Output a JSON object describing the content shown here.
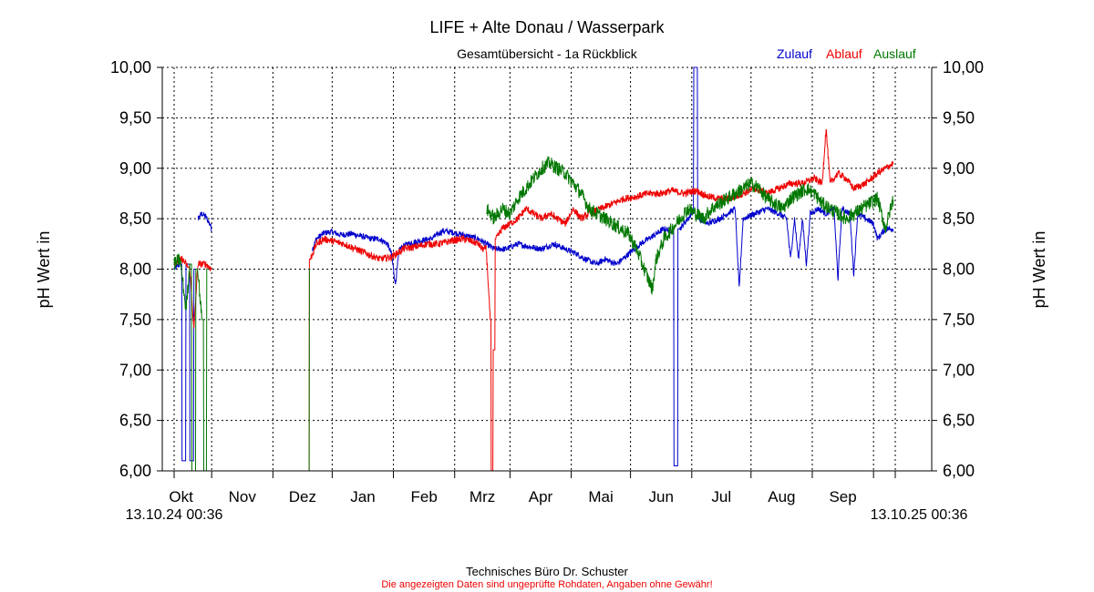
{
  "chart_data": {
    "type": "line",
    "title": "LIFE + Alte Donau / Wasserpark",
    "subtitle": "Gesamtübersicht - 1a Rückblick",
    "ylabel_left": "pH Wert in",
    "ylabel_right": "pH Wert in",
    "ylim": [
      6.0,
      10.0
    ],
    "yticks": [
      "6,00",
      "6,50",
      "7,00",
      "7,50",
      "8,00",
      "8,50",
      "9,00",
      "9,50",
      "10,00"
    ],
    "ytick_values": [
      6.0,
      6.5,
      7.0,
      7.5,
      8.0,
      8.5,
      9.0,
      9.5,
      10.0
    ],
    "xlim_days": [
      0,
      365
    ],
    "xticks": [
      {
        "label": "Okt",
        "day": 19
      },
      {
        "label": "Nov",
        "day": 50
      },
      {
        "label": "Dez",
        "day": 80
      },
      {
        "label": "Jan",
        "day": 111
      },
      {
        "label": "Feb",
        "day": 142
      },
      {
        "label": "Mrz",
        "day": 170
      },
      {
        "label": "Apr",
        "day": 201
      },
      {
        "label": "Mai",
        "day": 231
      },
      {
        "label": "Jun",
        "day": 262
      },
      {
        "label": "Jul",
        "day": 292
      },
      {
        "label": "Aug",
        "day": 323
      },
      {
        "label": "Sep",
        "day": 354
      }
    ],
    "x_start_label": "13.10.24 00:36",
    "x_end_label": "13.10.25 00:36",
    "legend": [
      {
        "name": "Zulauf",
        "color": "#0000cc"
      },
      {
        "name": "Ablauf",
        "color": "#ee0000"
      },
      {
        "name": "Auslauf",
        "color": "#007700"
      }
    ],
    "grid": true,
    "series": [
      {
        "name": "Zulauf",
        "color": "#0000cc",
        "noise": 0.03,
        "segments": [
          [
            [
              0,
              8.0
            ],
            [
              3,
              8.05
            ],
            [
              5,
              6.1
            ],
            [
              7,
              8.05
            ],
            [
              9,
              6.1
            ],
            [
              11,
              8.0
            ]
          ],
          [
            [
              12,
              8.5
            ],
            [
              14,
              8.55
            ],
            [
              16,
              8.52
            ],
            [
              18,
              8.45
            ],
            [
              19,
              8.4
            ]
          ],
          [
            [
              70,
              8.2
            ],
            [
              72,
              8.3
            ],
            [
              76,
              8.36
            ],
            [
              80,
              8.37
            ],
            [
              84,
              8.34
            ],
            [
              90,
              8.35
            ],
            [
              96,
              8.32
            ],
            [
              100,
              8.3
            ],
            [
              104,
              8.3
            ],
            [
              108,
              8.25
            ],
            [
              110,
              8.15
            ],
            [
              112,
              7.85
            ],
            [
              114,
              8.2
            ],
            [
              118,
              8.25
            ],
            [
              124,
              8.28
            ],
            [
              130,
              8.3
            ],
            [
              136,
              8.38
            ],
            [
              142,
              8.36
            ],
            [
              148,
              8.33
            ],
            [
              154,
              8.3
            ],
            [
              158,
              8.25
            ],
            [
              162,
              8.2
            ]
          ],
          [
            [
              162,
              8.2
            ],
            [
              168,
              8.2
            ],
            [
              174,
              8.25
            ],
            [
              180,
              8.22
            ],
            [
              186,
              8.2
            ],
            [
              192,
              8.25
            ],
            [
              198,
              8.2
            ],
            [
              204,
              8.15
            ],
            [
              208,
              8.1
            ],
            [
              214,
              8.05
            ],
            [
              218,
              8.1
            ],
            [
              224,
              8.05
            ],
            [
              230,
              8.15
            ],
            [
              236,
              8.25
            ],
            [
              240,
              8.3
            ],
            [
              244,
              8.35
            ],
            [
              248,
              8.4
            ],
            [
              252,
              8.38
            ],
            [
              254,
              6.05
            ],
            [
              256,
              8.4
            ],
            [
              260,
              8.5
            ],
            [
              262,
              8.55
            ],
            [
              264,
              10.0
            ],
            [
              266,
              8.5
            ],
            [
              270,
              8.45
            ],
            [
              276,
              8.5
            ],
            [
              280,
              8.55
            ],
            [
              284,
              8.6
            ],
            [
              286,
              7.8
            ],
            [
              288,
              8.5
            ],
            [
              294,
              8.55
            ],
            [
              300,
              8.6
            ],
            [
              306,
              8.55
            ],
            [
              310,
              8.5
            ],
            [
              312,
              8.1
            ],
            [
              314,
              8.5
            ],
            [
              316,
              8.1
            ],
            [
              318,
              8.5
            ],
            [
              320,
              8.05
            ],
            [
              322,
              8.55
            ],
            [
              326,
              8.6
            ],
            [
              330,
              8.55
            ],
            [
              334,
              8.6
            ],
            [
              336,
              7.9
            ],
            [
              338,
              8.6
            ],
            [
              342,
              8.55
            ],
            [
              344,
              7.95
            ],
            [
              346,
              8.55
            ],
            [
              350,
              8.5
            ],
            [
              354,
              8.45
            ],
            [
              356,
              8.3
            ],
            [
              360,
              8.4
            ],
            [
              364,
              8.4
            ]
          ]
        ]
      },
      {
        "name": "Ablauf",
        "color": "#ee0000",
        "noise": 0.035,
        "segments": [
          [
            [
              0,
              8.05
            ],
            [
              4,
              8.1
            ],
            [
              8,
              8.0
            ],
            [
              10,
              7.4
            ],
            [
              12,
              8.05
            ],
            [
              16,
              8.05
            ],
            [
              19,
              8.0
            ]
          ],
          [
            [
              68,
              6.0
            ],
            [
              69,
              8.1
            ],
            [
              72,
              8.25
            ],
            [
              76,
              8.3
            ],
            [
              80,
              8.28
            ],
            [
              86,
              8.25
            ],
            [
              92,
              8.2
            ],
            [
              98,
              8.15
            ],
            [
              104,
              8.1
            ],
            [
              110,
              8.12
            ],
            [
              116,
              8.2
            ],
            [
              122,
              8.22
            ],
            [
              128,
              8.25
            ],
            [
              134,
              8.25
            ],
            [
              140,
              8.28
            ],
            [
              146,
              8.3
            ],
            [
              150,
              8.28
            ],
            [
              154,
              8.25
            ],
            [
              156,
              8.2
            ],
            [
              158,
              8.2
            ]
          ],
          [
            [
              158,
              8.2
            ],
            [
              160,
              7.5
            ],
            [
              161,
              6.0
            ],
            [
              162,
              7.2
            ],
            [
              163,
              8.3
            ],
            [
              166,
              8.4
            ],
            [
              170,
              8.45
            ],
            [
              174,
              8.5
            ],
            [
              178,
              8.6
            ],
            [
              182,
              8.55
            ],
            [
              186,
              8.5
            ],
            [
              190,
              8.55
            ],
            [
              194,
              8.5
            ],
            [
              198,
              8.45
            ],
            [
              202,
              8.6
            ],
            [
              206,
              8.5
            ],
            [
              210,
              8.55
            ],
            [
              216,
              8.6
            ],
            [
              222,
              8.65
            ],
            [
              228,
              8.7
            ],
            [
              234,
              8.72
            ],
            [
              240,
              8.75
            ],
            [
              246,
              8.75
            ],
            [
              252,
              8.78
            ],
            [
              258,
              8.75
            ],
            [
              264,
              8.78
            ],
            [
              270,
              8.72
            ],
            [
              276,
              8.7
            ],
            [
              282,
              8.7
            ],
            [
              288,
              8.75
            ],
            [
              294,
              8.8
            ],
            [
              300,
              8.75
            ],
            [
              306,
              8.8
            ],
            [
              312,
              8.85
            ],
            [
              318,
              8.85
            ],
            [
              324,
              8.9
            ],
            [
              328,
              8.85
            ],
            [
              330,
              9.4
            ],
            [
              332,
              8.85
            ],
            [
              336,
              8.95
            ],
            [
              340,
              8.9
            ],
            [
              344,
              8.8
            ],
            [
              350,
              8.85
            ],
            [
              356,
              8.95
            ],
            [
              360,
              9.0
            ],
            [
              364,
              9.05
            ]
          ]
        ]
      },
      {
        "name": "Auslauf",
        "color": "#007700",
        "noise": 0.07,
        "segments": [
          [
            [
              0,
              8.05
            ],
            [
              3,
              8.1
            ],
            [
              6,
              7.6
            ],
            [
              8,
              8.05
            ],
            [
              10,
              6.0
            ],
            [
              12,
              8.0
            ],
            [
              14,
              7.5
            ],
            [
              16,
              6.0
            ],
            [
              17,
              8.0
            ]
          ],
          [
            [
              68,
              6.0
            ],
            [
              69,
              8.0
            ]
          ],
          [
            [
              158,
              8.6
            ],
            [
              162,
              8.5
            ],
            [
              166,
              8.6
            ],
            [
              170,
              8.55
            ],
            [
              174,
              8.7
            ],
            [
              178,
              8.8
            ],
            [
              182,
              8.9
            ],
            [
              186,
              9.0
            ],
            [
              190,
              9.05
            ],
            [
              194,
              9.0
            ],
            [
              198,
              8.95
            ],
            [
              202,
              8.85
            ],
            [
              206,
              8.75
            ],
            [
              210,
              8.6
            ],
            [
              214,
              8.55
            ],
            [
              218,
              8.5
            ],
            [
              222,
              8.45
            ],
            [
              226,
              8.4
            ],
            [
              230,
              8.35
            ],
            [
              234,
              8.2
            ],
            [
              238,
              8.0
            ],
            [
              242,
              7.8
            ],
            [
              244,
              8.1
            ],
            [
              248,
              8.3
            ],
            [
              252,
              8.4
            ],
            [
              256,
              8.5
            ],
            [
              260,
              8.6
            ],
            [
              264,
              8.55
            ],
            [
              268,
              8.5
            ],
            [
              272,
              8.6
            ],
            [
              276,
              8.65
            ],
            [
              280,
              8.7
            ],
            [
              284,
              8.75
            ],
            [
              288,
              8.8
            ],
            [
              292,
              8.85
            ],
            [
              296,
              8.8
            ],
            [
              300,
              8.7
            ],
            [
              304,
              8.65
            ],
            [
              308,
              8.6
            ],
            [
              312,
              8.7
            ],
            [
              316,
              8.75
            ],
            [
              320,
              8.8
            ],
            [
              324,
              8.75
            ],
            [
              328,
              8.65
            ],
            [
              332,
              8.6
            ],
            [
              336,
              8.55
            ],
            [
              340,
              8.5
            ],
            [
              344,
              8.55
            ],
            [
              348,
              8.6
            ],
            [
              352,
              8.65
            ],
            [
              356,
              8.7
            ],
            [
              360,
              8.4
            ],
            [
              364,
              8.7
            ]
          ]
        ]
      }
    ]
  },
  "footer": {
    "company": "Technisches Büro Dr. Schuster",
    "disclaimer": "Die angezeigten Daten sind ungeprüfte Rohdaten, Angaben ohne Gewähr!"
  }
}
